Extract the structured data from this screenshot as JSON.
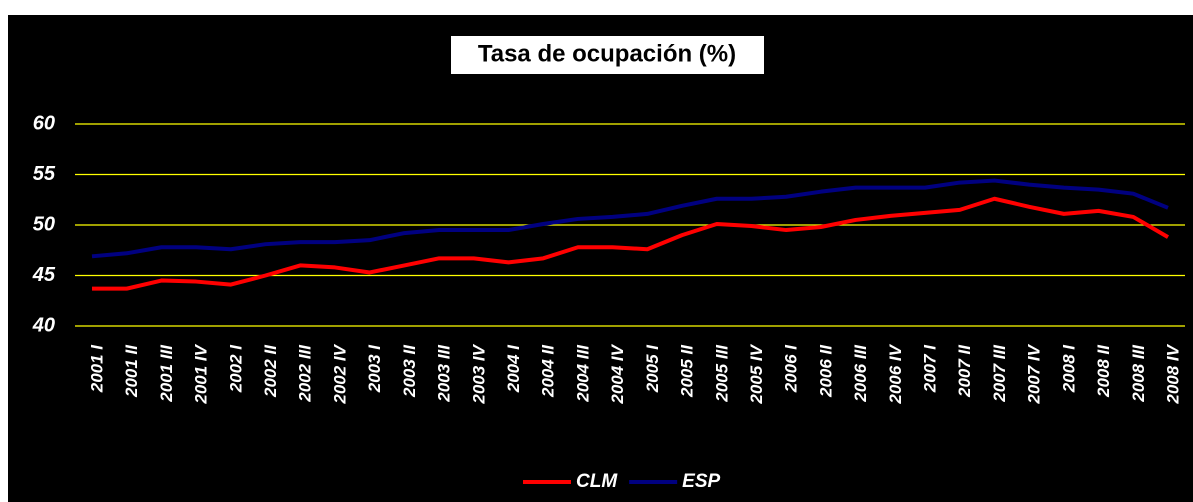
{
  "chart_data": {
    "type": "line",
    "title": "Tasa de ocupación (%)",
    "categories": [
      "2001 I",
      "2001 II",
      "2001 III",
      "2001 IV",
      "2002 I",
      "2002 II",
      "2002 III",
      "2002 IV",
      "2003 I",
      "2003 II",
      "2003 III",
      "2003 IV",
      "2004 I",
      "2004 II",
      "2004 III",
      "2004 IV",
      "2005 I",
      "2005 II",
      "2005 III",
      "2005 IV",
      "2006 I",
      "2006 II",
      "2006 III",
      "2006 IV",
      "2007 I",
      "2007 II",
      "2007 III",
      "2007 IV",
      "2008 I",
      "2008 II",
      "2008 III",
      "2008 IV"
    ],
    "series": [
      {
        "name": "CLM",
        "color": "#ff0000",
        "values": [
          43.7,
          43.7,
          44.5,
          44.4,
          44.1,
          45.0,
          46.0,
          45.8,
          45.3,
          46.0,
          46.7,
          46.7,
          46.3,
          46.7,
          47.8,
          47.8,
          47.6,
          49.0,
          50.1,
          49.9,
          49.5,
          49.8,
          50.5,
          50.9,
          51.2,
          51.5,
          52.6,
          51.8,
          51.1,
          51.4,
          50.8,
          48.8
        ]
      },
      {
        "name": "ESP",
        "color": "#000080",
        "values": [
          46.9,
          47.2,
          47.8,
          47.8,
          47.6,
          48.1,
          48.3,
          48.3,
          48.5,
          49.2,
          49.5,
          49.5,
          49.5,
          50.1,
          50.6,
          50.8,
          51.1,
          51.9,
          52.6,
          52.6,
          52.8,
          53.3,
          53.7,
          53.7,
          53.7,
          54.2,
          54.4,
          54.0,
          53.7,
          53.5,
          53.1,
          51.7
        ]
      }
    ],
    "ylim": [
      40,
      60
    ],
    "yticks": [
      40,
      45,
      50,
      55,
      60
    ],
    "grid": true,
    "grid_color": "#ffff00",
    "legend": "bottom"
  }
}
